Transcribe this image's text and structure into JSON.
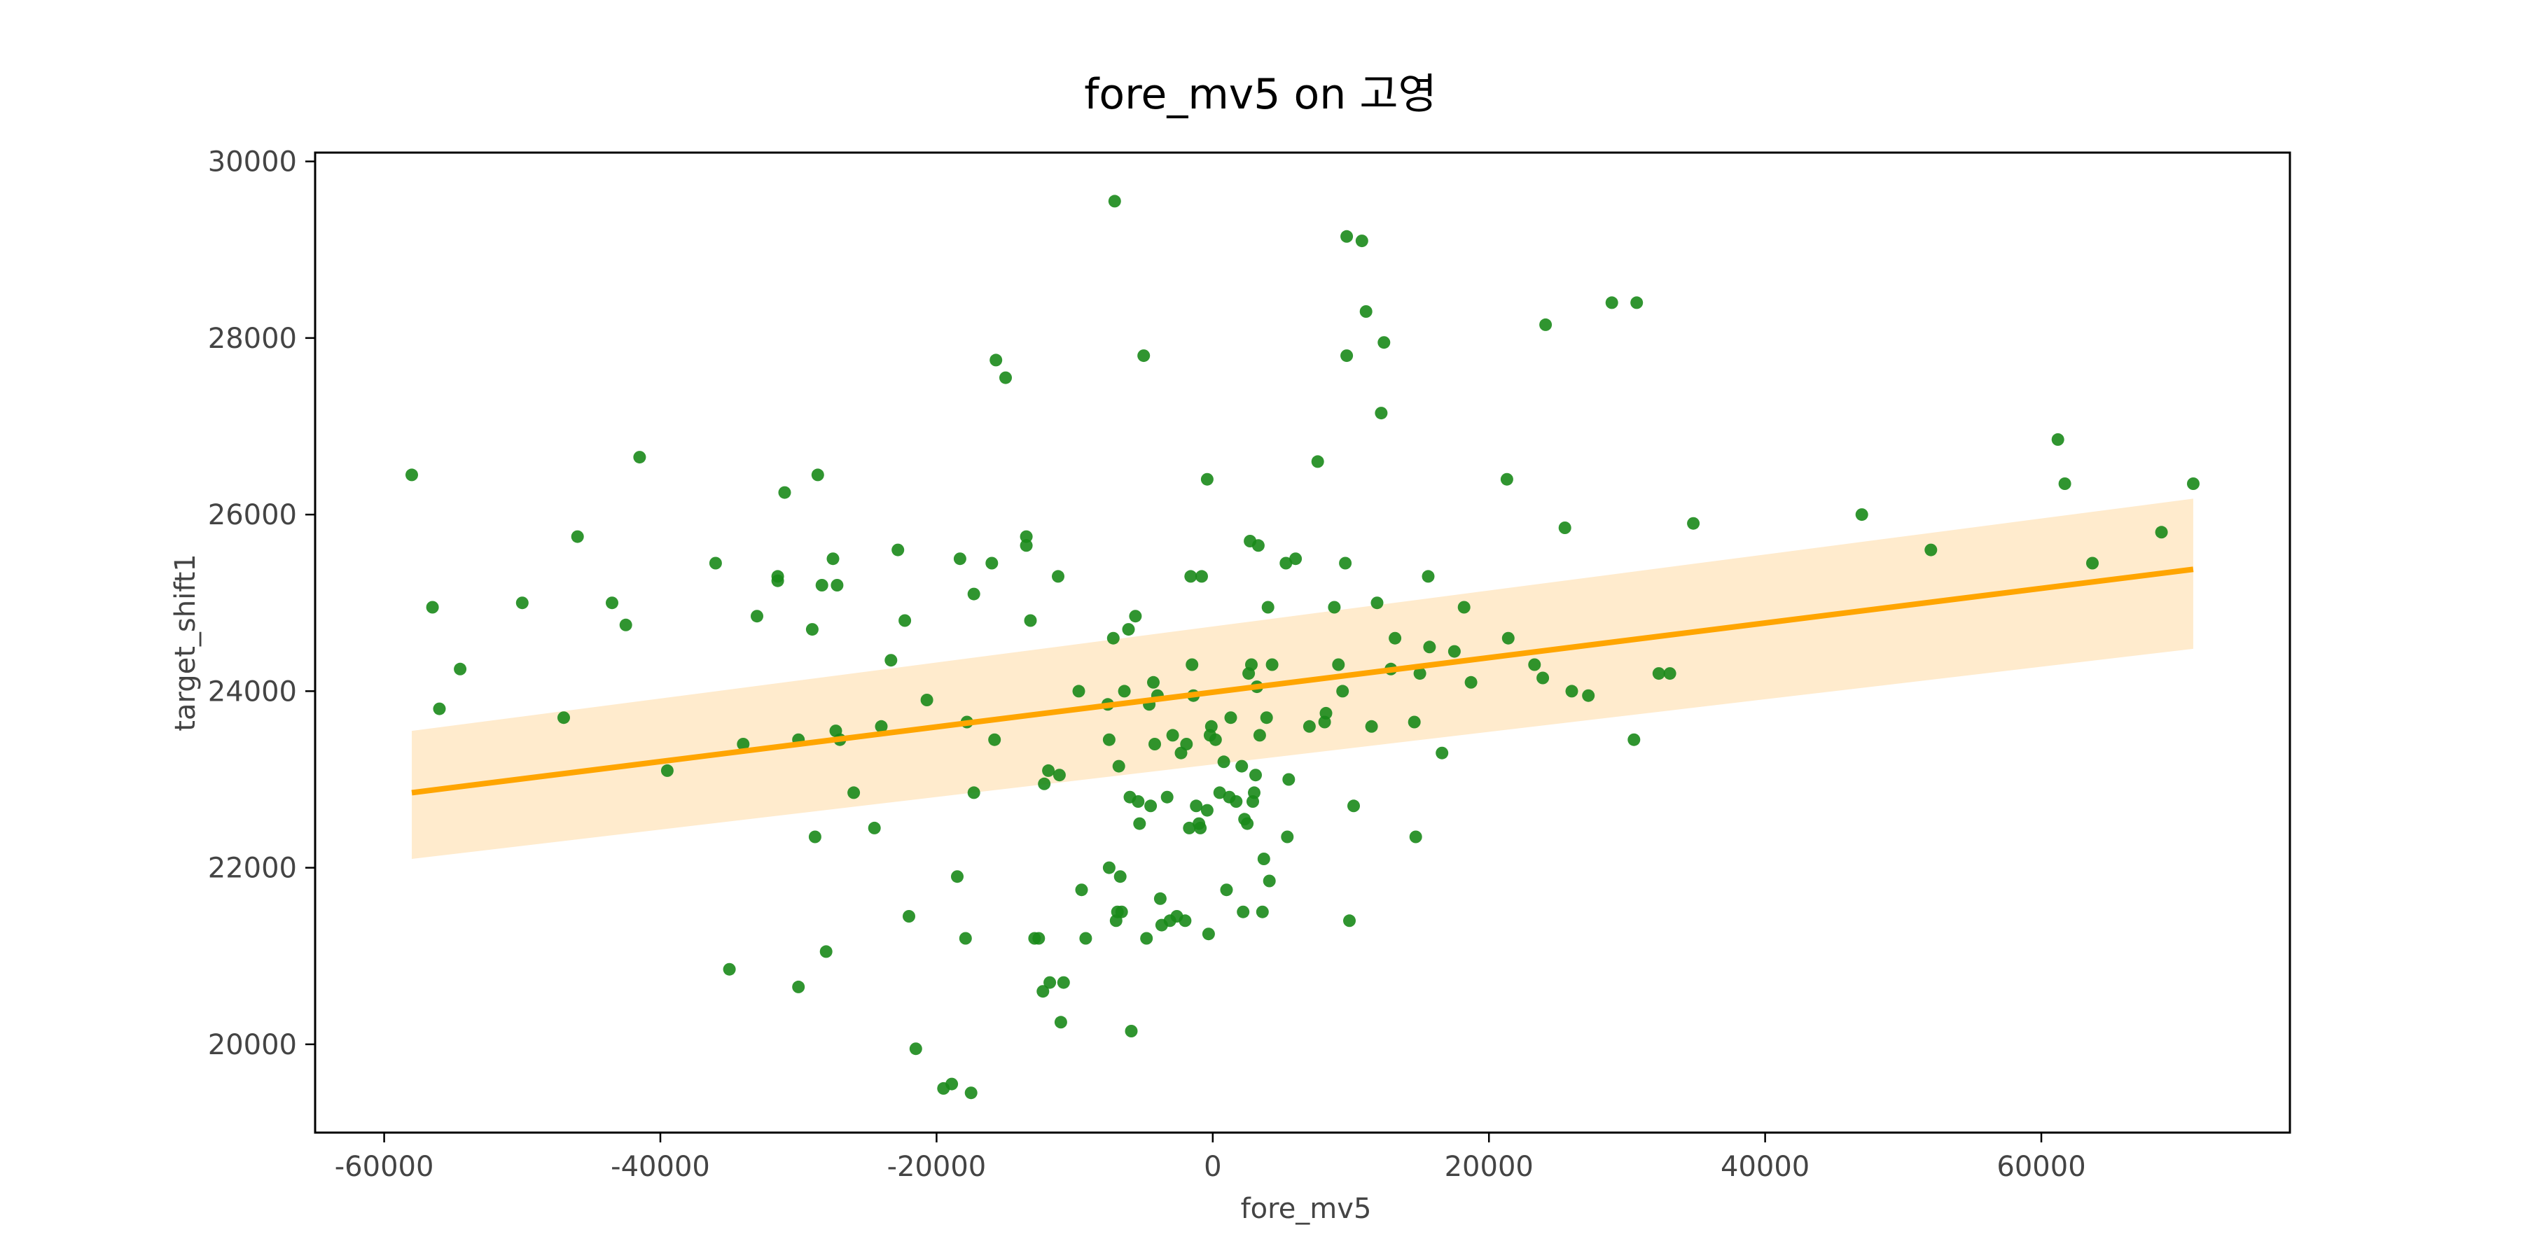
{
  "chart_data": {
    "type": "scatter",
    "title": "fore_mv5 on 고영",
    "xlabel": "fore_mv5",
    "ylabel": "target_shift1",
    "xlim": [
      -65000,
      78000
    ],
    "ylim": [
      19000,
      30100
    ],
    "xticks": [
      -60000,
      -40000,
      -20000,
      0,
      20000,
      40000,
      60000
    ],
    "yticks": [
      20000,
      22000,
      24000,
      26000,
      28000,
      30000
    ],
    "grid": false,
    "point_color": "#1a8a1a",
    "line_color": "#ffa500",
    "band_color": "#ffe8c4",
    "regression": {
      "x": [
        -58000,
        71000
      ],
      "y": [
        22850,
        25380
      ],
      "ci_low": [
        22100,
        24480
      ],
      "ci_high": [
        23550,
        26180
      ]
    },
    "points": [
      [
        -58000,
        26450
      ],
      [
        -56500,
        24950
      ],
      [
        -56000,
        23800
      ],
      [
        -54500,
        24250
      ],
      [
        -50000,
        25000
      ],
      [
        -47000,
        23700
      ],
      [
        -46000,
        25750
      ],
      [
        -43500,
        25000
      ],
      [
        -42500,
        24750
      ],
      [
        -41500,
        26650
      ],
      [
        -39500,
        23100
      ],
      [
        -36000,
        25450
      ],
      [
        -35000,
        20850
      ],
      [
        -34000,
        23400
      ],
      [
        -33000,
        24850
      ],
      [
        -31500,
        25300
      ],
      [
        -31500,
        25250
      ],
      [
        -31000,
        26250
      ],
      [
        -30000,
        23450
      ],
      [
        -30000,
        20650
      ],
      [
        -29000,
        24700
      ],
      [
        -28800,
        22350
      ],
      [
        -28600,
        26450
      ],
      [
        -28300,
        25200
      ],
      [
        -28000,
        21050
      ],
      [
        -27500,
        25500
      ],
      [
        -27300,
        23550
      ],
      [
        -27200,
        25200
      ],
      [
        -27000,
        23450
      ],
      [
        -26000,
        22850
      ],
      [
        -24500,
        22450
      ],
      [
        -24000,
        23600
      ],
      [
        -23300,
        24350
      ],
      [
        -22800,
        25600
      ],
      [
        -22300,
        24800
      ],
      [
        -22000,
        21450
      ],
      [
        -21500,
        19950
      ],
      [
        -20700,
        23900
      ],
      [
        -19500,
        19500
      ],
      [
        -18900,
        19550
      ],
      [
        -18500,
        21900
      ],
      [
        -18300,
        25500
      ],
      [
        -17900,
        21200
      ],
      [
        -17800,
        23650
      ],
      [
        -17500,
        19450
      ],
      [
        -17300,
        25100
      ],
      [
        -17300,
        22850
      ],
      [
        -16000,
        25450
      ],
      [
        -15800,
        23450
      ],
      [
        -15700,
        27750
      ],
      [
        -15000,
        27550
      ],
      [
        -13500,
        25750
      ],
      [
        -13500,
        25650
      ],
      [
        -13200,
        24800
      ],
      [
        -12900,
        21200
      ],
      [
        -12600,
        21200
      ],
      [
        -12300,
        20600
      ],
      [
        -12200,
        22950
      ],
      [
        -11900,
        23100
      ],
      [
        -11800,
        20700
      ],
      [
        -11200,
        25300
      ],
      [
        -11100,
        23050
      ],
      [
        -11000,
        20250
      ],
      [
        -10800,
        20700
      ],
      [
        -9700,
        24000
      ],
      [
        -9500,
        21750
      ],
      [
        -9200,
        21200
      ],
      [
        -7600,
        23850
      ],
      [
        -7500,
        22000
      ],
      [
        -7500,
        23450
      ],
      [
        -7200,
        24600
      ],
      [
        -7100,
        29550
      ],
      [
        -7000,
        21400
      ],
      [
        -6900,
        21500
      ],
      [
        -6800,
        23150
      ],
      [
        -6700,
        21900
      ],
      [
        -6600,
        21500
      ],
      [
        -6400,
        24000
      ],
      [
        -6100,
        24700
      ],
      [
        -6000,
        22800
      ],
      [
        -5900,
        20150
      ],
      [
        -5600,
        24850
      ],
      [
        -5400,
        22750
      ],
      [
        -5300,
        22500
      ],
      [
        -5000,
        27800
      ],
      [
        -4800,
        21200
      ],
      [
        -4600,
        23850
      ],
      [
        -4500,
        22700
      ],
      [
        -4300,
        24100
      ],
      [
        -4200,
        23400
      ],
      [
        -4000,
        23950
      ],
      [
        -3800,
        21650
      ],
      [
        -3700,
        21350
      ],
      [
        -3300,
        22800
      ],
      [
        -3100,
        21400
      ],
      [
        -2900,
        23500
      ],
      [
        -2600,
        21450
      ],
      [
        -2300,
        23300
      ],
      [
        -2000,
        21400
      ],
      [
        -1900,
        23400
      ],
      [
        -1700,
        22450
      ],
      [
        -1600,
        25300
      ],
      [
        -1500,
        24300
      ],
      [
        -1400,
        23950
      ],
      [
        -1200,
        22700
      ],
      [
        -1000,
        22500
      ],
      [
        -900,
        22450
      ],
      [
        -800,
        25300
      ],
      [
        -400,
        26400
      ],
      [
        -400,
        22650
      ],
      [
        -300,
        21250
      ],
      [
        -200,
        23500
      ],
      [
        -100,
        23600
      ],
      [
        200,
        23450
      ],
      [
        500,
        22850
      ],
      [
        800,
        23200
      ],
      [
        1000,
        21750
      ],
      [
        1200,
        22800
      ],
      [
        1300,
        23700
      ],
      [
        1700,
        22750
      ],
      [
        2100,
        23150
      ],
      [
        2200,
        21500
      ],
      [
        2300,
        22550
      ],
      [
        2500,
        22500
      ],
      [
        2600,
        24200
      ],
      [
        2700,
        25700
      ],
      [
        2800,
        24300
      ],
      [
        2900,
        22750
      ],
      [
        3000,
        22850
      ],
      [
        3100,
        23050
      ],
      [
        3200,
        24050
      ],
      [
        3300,
        25650
      ],
      [
        3400,
        23500
      ],
      [
        3600,
        21500
      ],
      [
        3700,
        22100
      ],
      [
        3900,
        23700
      ],
      [
        4000,
        24950
      ],
      [
        4100,
        21850
      ],
      [
        4300,
        24300
      ],
      [
        5300,
        25450
      ],
      [
        5400,
        22350
      ],
      [
        5500,
        23000
      ],
      [
        6000,
        25500
      ],
      [
        7000,
        23600
      ],
      [
        7600,
        26600
      ],
      [
        8100,
        23650
      ],
      [
        8200,
        23750
      ],
      [
        8800,
        24950
      ],
      [
        9100,
        24300
      ],
      [
        9400,
        24000
      ],
      [
        9600,
        25450
      ],
      [
        9700,
        29150
      ],
      [
        9700,
        27800
      ],
      [
        9900,
        21400
      ],
      [
        10200,
        22700
      ],
      [
        10800,
        29100
      ],
      [
        11100,
        28300
      ],
      [
        11500,
        23600
      ],
      [
        11900,
        25000
      ],
      [
        12200,
        27150
      ],
      [
        12400,
        27950
      ],
      [
        12900,
        24250
      ],
      [
        13200,
        24600
      ],
      [
        14600,
        23650
      ],
      [
        14700,
        22350
      ],
      [
        15000,
        24200
      ],
      [
        15600,
        25300
      ],
      [
        15700,
        24500
      ],
      [
        16600,
        23300
      ],
      [
        17500,
        24450
      ],
      [
        18200,
        24950
      ],
      [
        18700,
        24100
      ],
      [
        21300,
        26400
      ],
      [
        21400,
        24600
      ],
      [
        23300,
        24300
      ],
      [
        23900,
        24150
      ],
      [
        24100,
        28150
      ],
      [
        25500,
        25850
      ],
      [
        26000,
        24000
      ],
      [
        27200,
        23950
      ],
      [
        28900,
        28400
      ],
      [
        30500,
        23450
      ],
      [
        30700,
        28400
      ],
      [
        32300,
        24200
      ],
      [
        33100,
        24200
      ],
      [
        34800,
        25900
      ],
      [
        47000,
        26000
      ],
      [
        52000,
        25600
      ],
      [
        61200,
        26850
      ],
      [
        61700,
        26350
      ],
      [
        63700,
        25450
      ],
      [
        68700,
        25800
      ],
      [
        71000,
        26350
      ]
    ]
  }
}
